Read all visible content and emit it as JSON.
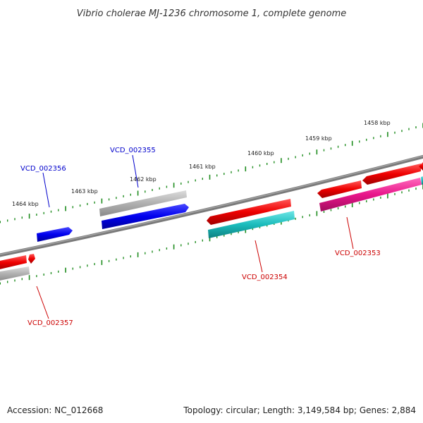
{
  "title": "Vibrio cholerae MJ-1236 chromosome 1, complete genome",
  "footer": {
    "accession": "Accession: NC_012668",
    "summary": "Topology: circular; Length: 3,149,584 bp; Genes: 2,884"
  },
  "colors": {
    "backbone": "#7a7a7a",
    "tick": "#1e8c1e",
    "cds_forward": "#ee0000",
    "cds_reverse": "#0000ee",
    "rna_grey": "#b0b0b0",
    "teal": "#1bbcbc",
    "magenta": "#e8168a",
    "label_blue": "#0000cc",
    "label_red": "#cc0000"
  },
  "kbp_labels": [
    "1458 kbp",
    "1459 kbp",
    "1460 kbp",
    "1461 kbp",
    "1462 kbp",
    "1463 kbp",
    "1464 kbp"
  ],
  "gene_labels": [
    {
      "name": "VCD_002353",
      "color_key": "label_red"
    },
    {
      "name": "VCD_002354",
      "color_key": "label_red"
    },
    {
      "name": "VCD_002355",
      "color_key": "label_blue"
    },
    {
      "name": "VCD_002356",
      "color_key": "label_blue"
    },
    {
      "name": "VCD_002357",
      "color_key": "label_red"
    }
  ]
}
